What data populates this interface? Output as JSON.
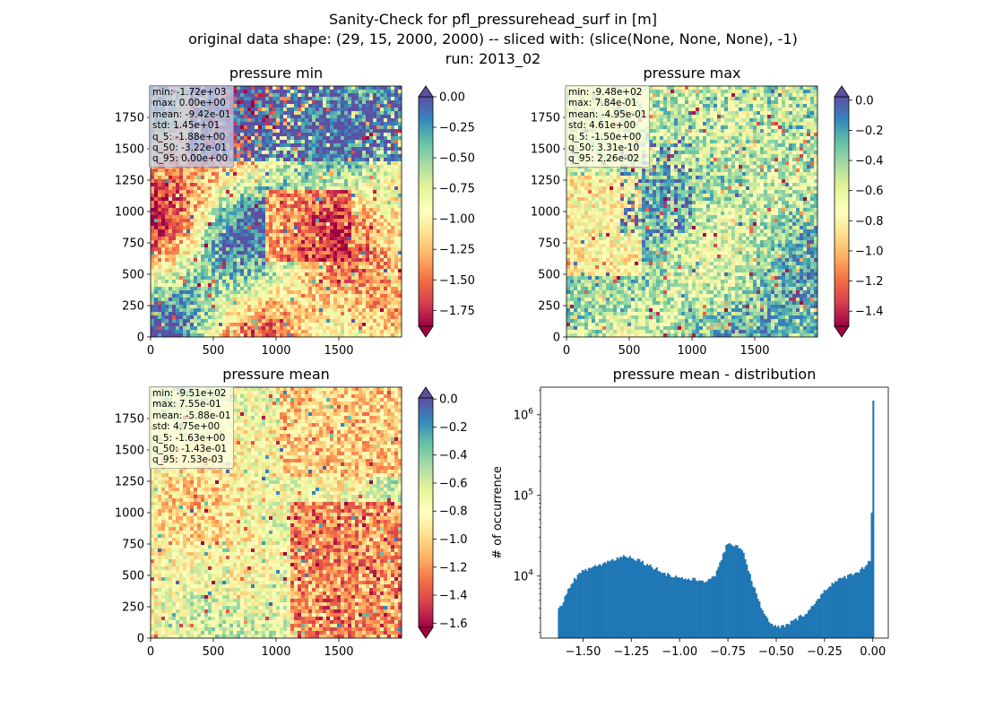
{
  "figure": {
    "title_lines": [
      "Sanity-Check for pfl_pressurehead_surf in [m]",
      "original data shape: (29, 15, 2000, 2000) -- sliced with: (slice(None, None, None), -1)",
      "run: 2013_02"
    ]
  },
  "colormap": {
    "name": "Spectral",
    "stops": [
      "#9e0142",
      "#d53e4f",
      "#f46d43",
      "#fdae61",
      "#fee08b",
      "#ffffbf",
      "#e6f598",
      "#abdda4",
      "#66c2a5",
      "#3288bd",
      "#5e4fa2"
    ]
  },
  "chart_data": [
    {
      "type": "heatmap",
      "title": "pressure min",
      "xlim": [
        0,
        2000
      ],
      "ylim": [
        0,
        2000
      ],
      "xticks": [
        "0",
        "500",
        "1000",
        "1500"
      ],
      "yticks": [
        "0",
        "250",
        "500",
        "750",
        "1000",
        "1250",
        "1500",
        "1750"
      ],
      "colorbar": {
        "vmin": -1.88,
        "vmax": 0.0,
        "extend": "both",
        "ticks": [
          -1.75,
          -1.5,
          -1.25,
          -1.0,
          -0.75,
          -0.5,
          -0.25,
          0.0
        ],
        "tick_labels": [
          "−1.75",
          "−1.50",
          "−1.25",
          "−1.00",
          "−0.75",
          "−0.50",
          "−0.25",
          "0.00"
        ]
      },
      "stats": [
        "min: -1.72e+03",
        "max: 0.00e+00",
        "mean: -9.42e-01",
        "std: 1.45e+01",
        "q_5: -1.88e+00",
        "q_50: -3.22e-01",
        "q_95: 0.00e+00"
      ]
    },
    {
      "type": "heatmap",
      "title": "pressure max",
      "xlim": [
        0,
        2000
      ],
      "ylim": [
        0,
        2000
      ],
      "xticks": [
        "0",
        "500",
        "1000",
        "1500"
      ],
      "yticks": [
        "0",
        "250",
        "500",
        "750",
        "1000",
        "1250",
        "1500",
        "1750"
      ],
      "colorbar": {
        "vmin": -1.5,
        "vmax": 0.0226,
        "extend": "both",
        "ticks": [
          -1.4,
          -1.2,
          -1.0,
          -0.8,
          -0.6,
          -0.4,
          -0.2,
          0.0
        ],
        "tick_labels": [
          "−1.4",
          "−1.2",
          "−1.0",
          "−0.8",
          "−0.6",
          "−0.4",
          "−0.2",
          "0.0"
        ]
      },
      "stats": [
        "min: -9.48e+02",
        "max: 7.84e-01",
        "mean: -4.95e-01",
        "std: 4.61e+00",
        "q_5: -1.50e+00",
        "q_50: 3.31e-10",
        "q_95: 2.26e-02"
      ]
    },
    {
      "type": "heatmap",
      "title": "pressure mean",
      "xlim": [
        0,
        2000
      ],
      "ylim": [
        0,
        2000
      ],
      "xticks": [
        "0",
        "500",
        "1000",
        "1500"
      ],
      "yticks": [
        "0",
        "250",
        "500",
        "750",
        "1000",
        "1250",
        "1500",
        "1750"
      ],
      "colorbar": {
        "vmin": -1.63,
        "vmax": 0.00753,
        "extend": "both",
        "ticks": [
          -1.6,
          -1.4,
          -1.2,
          -1.0,
          -0.8,
          -0.6,
          -0.4,
          -0.2,
          0.0
        ],
        "tick_labels": [
          "−1.6",
          "−1.4",
          "−1.2",
          "−1.0",
          "−0.8",
          "−0.6",
          "−0.4",
          "−0.2",
          "0.0"
        ]
      },
      "stats": [
        "min: -9.51e+02",
        "max: 7.55e-01",
        "mean: -5.88e-01",
        "std: 4.75e+00",
        "q_5: -1.63e+00",
        "q_50: -1.43e-01",
        "q_95: 7.53e-03"
      ]
    },
    {
      "type": "bar",
      "title": "pressure mean - distribution",
      "ylabel": "# of occurrence",
      "yscale": "log",
      "bar_color": "#1f77b4",
      "xlim": [
        -1.72,
        0.08
      ],
      "ylim": [
        1700,
        2200000
      ],
      "bin_start": -1.63,
      "bin_width": 0.00818,
      "xticks": [
        -1.5,
        -1.25,
        -1.0,
        -0.75,
        -0.5,
        -0.25,
        0.0
      ],
      "xtick_labels": [
        "−1.50",
        "−1.25",
        "−1.00",
        "−0.75",
        "−0.50",
        "−0.25",
        "0.00"
      ],
      "yticks": [
        10000,
        100000,
        1000000
      ],
      "ytick_labels": [
        {
          "base": "10",
          "exp": "4"
        },
        {
          "base": "10",
          "exp": "5"
        },
        {
          "base": "10",
          "exp": "6"
        }
      ],
      "profile": [
        [
          -1.63,
          3700
        ],
        [
          -1.6,
          5000
        ],
        [
          -1.55,
          9000
        ],
        [
          -1.5,
          11500
        ],
        [
          -1.45,
          13000
        ],
        [
          -1.4,
          14200
        ],
        [
          -1.35,
          15800
        ],
        [
          -1.3,
          17500
        ],
        [
          -1.27,
          17800
        ],
        [
          -1.22,
          16200
        ],
        [
          -1.15,
          13300
        ],
        [
          -1.1,
          11600
        ],
        [
          -1.05,
          10200
        ],
        [
          -1.0,
          9600
        ],
        [
          -0.95,
          9100
        ],
        [
          -0.9,
          8900
        ],
        [
          -0.85,
          8800
        ],
        [
          -0.82,
          9700
        ],
        [
          -0.79,
          15000
        ],
        [
          -0.76,
          23000
        ],
        [
          -0.73,
          25000
        ],
        [
          -0.7,
          24000
        ],
        [
          -0.67,
          20000
        ],
        [
          -0.64,
          11000
        ],
        [
          -0.6,
          5600
        ],
        [
          -0.56,
          3300
        ],
        [
          -0.53,
          2500
        ],
        [
          -0.48,
          2300
        ],
        [
          -0.43,
          2600
        ],
        [
          -0.36,
          3300
        ],
        [
          -0.3,
          4500
        ],
        [
          -0.25,
          6800
        ],
        [
          -0.2,
          8300
        ],
        [
          -0.15,
          9600
        ],
        [
          -0.1,
          10800
        ],
        [
          -0.05,
          12500
        ],
        [
          -0.015,
          15500
        ],
        [
          -0.008,
          27000
        ],
        [
          0.0,
          1500000
        ]
      ]
    }
  ]
}
